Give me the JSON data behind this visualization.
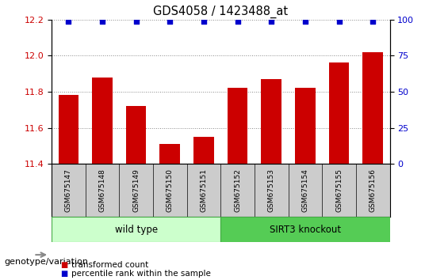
{
  "title": "GDS4058 / 1423488_at",
  "samples": [
    "GSM675147",
    "GSM675148",
    "GSM675149",
    "GSM675150",
    "GSM675151",
    "GSM675152",
    "GSM675153",
    "GSM675154",
    "GSM675155",
    "GSM675156"
  ],
  "bar_values": [
    11.78,
    11.88,
    11.72,
    11.51,
    11.55,
    11.82,
    11.87,
    11.82,
    11.96,
    12.02
  ],
  "bar_color": "#cc0000",
  "percentile_color": "#0000cc",
  "ylim_left": [
    11.4,
    12.2
  ],
  "ylim_right": [
    0,
    100
  ],
  "yticks_left": [
    11.4,
    11.6,
    11.8,
    12.0,
    12.2
  ],
  "yticks_right": [
    0,
    25,
    50,
    75,
    100
  ],
  "groups": [
    {
      "label": "wild type",
      "start": 0,
      "end": 5,
      "color": "#ccffcc",
      "border_color": "#44aa44"
    },
    {
      "label": "SIRT3 knockout",
      "start": 5,
      "end": 10,
      "color": "#55cc55",
      "border_color": "#44aa44"
    }
  ],
  "legend_bar_label": "transformed count",
  "legend_pct_label": "percentile rank within the sample",
  "genotype_label": "genotype/variation",
  "bar_color_left_axis": "#cc0000",
  "pct_color_right_axis": "#0000cc",
  "tick_label_area_color": "#cccccc",
  "title_fontsize": 10.5
}
